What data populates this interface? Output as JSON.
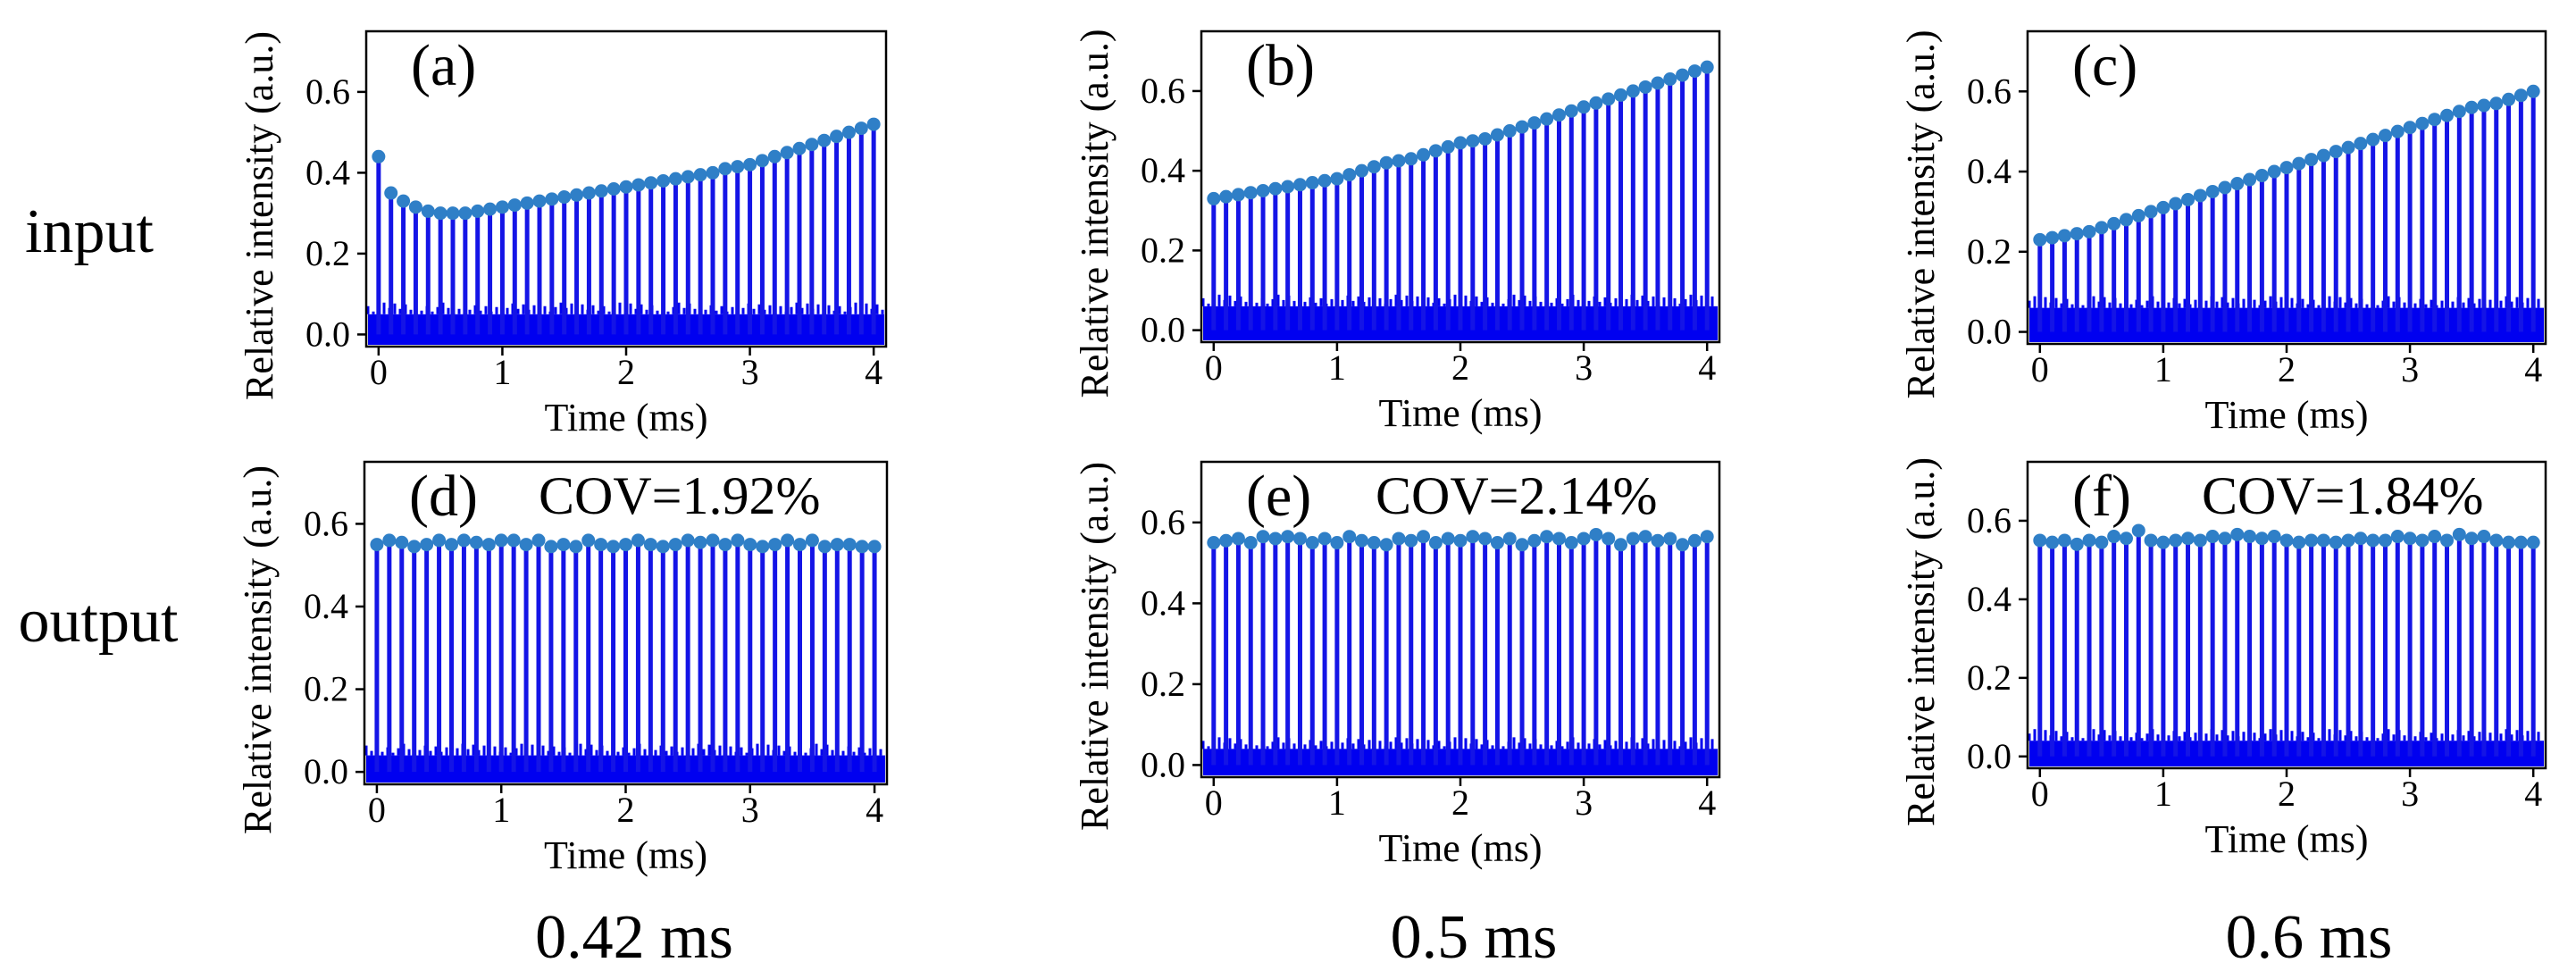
{
  "rows": {
    "input_label": "input",
    "output_label": "output"
  },
  "columns": [
    {
      "label": "0.42 ms"
    },
    {
      "label": "0.5 ms"
    },
    {
      "label": "0.6 ms"
    }
  ],
  "colors": {
    "stem": "#1414e6",
    "marker": "#2f7fc7",
    "baseline_noise": "#0000f0",
    "axis": "#000000"
  },
  "chart_data": [
    {
      "type": "stem",
      "panel": "(a)",
      "annotation": "",
      "xlabel": "Time (ms)",
      "ylabel": "Relative intensity (a.u.)",
      "xlim": [
        -0.1,
        4.1
      ],
      "ylim": [
        -0.03,
        0.75
      ],
      "xticks": [
        0,
        1,
        2,
        3,
        4
      ],
      "yticks": [
        0.0,
        0.2,
        0.4,
        0.6
      ],
      "ytick_labels": [
        "0.0",
        "0.2",
        "0.4",
        "0.6"
      ],
      "noise_level": 0.05,
      "x": [
        0,
        0.1,
        0.2,
        0.3,
        0.4,
        0.5,
        0.6,
        0.7,
        0.8,
        0.9,
        1.0,
        1.1,
        1.2,
        1.3,
        1.4,
        1.5,
        1.6,
        1.7,
        1.8,
        1.9,
        2.0,
        2.1,
        2.2,
        2.3,
        2.4,
        2.5,
        2.6,
        2.7,
        2.8,
        2.9,
        3.0,
        3.1,
        3.2,
        3.3,
        3.4,
        3.5,
        3.6,
        3.7,
        3.8,
        3.9,
        4.0
      ],
      "values": [
        0.44,
        0.35,
        0.33,
        0.315,
        0.305,
        0.3,
        0.3,
        0.3,
        0.305,
        0.31,
        0.315,
        0.32,
        0.325,
        0.33,
        0.335,
        0.34,
        0.345,
        0.35,
        0.355,
        0.36,
        0.365,
        0.37,
        0.375,
        0.38,
        0.385,
        0.39,
        0.395,
        0.4,
        0.41,
        0.415,
        0.42,
        0.43,
        0.44,
        0.45,
        0.46,
        0.47,
        0.48,
        0.49,
        0.5,
        0.51,
        0.52
      ]
    },
    {
      "type": "stem",
      "panel": "(b)",
      "annotation": "",
      "xlabel": "Time (ms)",
      "ylabel": "Relative intensity (a.u.)",
      "xlim": [
        -0.1,
        4.1
      ],
      "ylim": [
        -0.03,
        0.75
      ],
      "xticks": [
        0,
        1,
        2,
        3,
        4
      ],
      "yticks": [
        0.0,
        0.2,
        0.4,
        0.6
      ],
      "ytick_labels": [
        "0.0",
        "0.2",
        "0.4",
        "0.6"
      ],
      "noise_level": 0.06,
      "x": [
        0,
        0.1,
        0.2,
        0.3,
        0.4,
        0.5,
        0.6,
        0.7,
        0.8,
        0.9,
        1.0,
        1.1,
        1.2,
        1.3,
        1.4,
        1.5,
        1.6,
        1.7,
        1.8,
        1.9,
        2.0,
        2.1,
        2.2,
        2.3,
        2.4,
        2.5,
        2.6,
        2.7,
        2.8,
        2.9,
        3.0,
        3.1,
        3.2,
        3.3,
        3.4,
        3.5,
        3.6,
        3.7,
        3.8,
        3.9,
        4.0
      ],
      "values": [
        0.33,
        0.335,
        0.34,
        0.345,
        0.35,
        0.355,
        0.36,
        0.365,
        0.37,
        0.375,
        0.38,
        0.39,
        0.4,
        0.41,
        0.42,
        0.425,
        0.43,
        0.44,
        0.45,
        0.46,
        0.47,
        0.475,
        0.48,
        0.49,
        0.5,
        0.51,
        0.52,
        0.53,
        0.54,
        0.55,
        0.56,
        0.57,
        0.58,
        0.59,
        0.6,
        0.61,
        0.62,
        0.63,
        0.64,
        0.65,
        0.66
      ]
    },
    {
      "type": "stem",
      "panel": "(c)",
      "annotation": "",
      "xlabel": "Time (ms)",
      "ylabel": "Relative intensity (a.u.)",
      "xlim": [
        -0.1,
        4.1
      ],
      "ylim": [
        -0.03,
        0.75
      ],
      "xticks": [
        0,
        1,
        2,
        3,
        4
      ],
      "yticks": [
        0.0,
        0.2,
        0.4,
        0.6
      ],
      "ytick_labels": [
        "0.0",
        "0.2",
        "0.4",
        "0.6"
      ],
      "noise_level": 0.06,
      "x": [
        0,
        0.1,
        0.2,
        0.3,
        0.4,
        0.5,
        0.6,
        0.7,
        0.8,
        0.9,
        1.0,
        1.1,
        1.2,
        1.3,
        1.4,
        1.5,
        1.6,
        1.7,
        1.8,
        1.9,
        2.0,
        2.1,
        2.2,
        2.3,
        2.4,
        2.5,
        2.6,
        2.7,
        2.8,
        2.9,
        3.0,
        3.1,
        3.2,
        3.3,
        3.4,
        3.5,
        3.6,
        3.7,
        3.8,
        3.9,
        4.0
      ],
      "values": [
        0.23,
        0.235,
        0.24,
        0.245,
        0.25,
        0.26,
        0.27,
        0.28,
        0.29,
        0.3,
        0.31,
        0.32,
        0.33,
        0.34,
        0.35,
        0.36,
        0.37,
        0.38,
        0.39,
        0.4,
        0.41,
        0.42,
        0.43,
        0.44,
        0.45,
        0.46,
        0.47,
        0.48,
        0.49,
        0.5,
        0.51,
        0.52,
        0.53,
        0.54,
        0.55,
        0.56,
        0.565,
        0.57,
        0.58,
        0.59,
        0.6
      ]
    },
    {
      "type": "stem",
      "panel": "(d)",
      "annotation": "COV=1.92%",
      "xlabel": "Time (ms)",
      "ylabel": "Relative intensity (a.u.)",
      "xlim": [
        -0.1,
        4.1
      ],
      "ylim": [
        -0.03,
        0.75
      ],
      "xticks": [
        0,
        1,
        2,
        3,
        4
      ],
      "yticks": [
        0.0,
        0.2,
        0.4,
        0.6
      ],
      "ytick_labels": [
        "0.0",
        "0.2",
        "0.4",
        "0.6"
      ],
      "noise_level": 0.04,
      "x": [
        0,
        0.1,
        0.2,
        0.3,
        0.4,
        0.5,
        0.6,
        0.7,
        0.8,
        0.9,
        1.0,
        1.1,
        1.2,
        1.3,
        1.4,
        1.5,
        1.6,
        1.7,
        1.8,
        1.9,
        2.0,
        2.1,
        2.2,
        2.3,
        2.4,
        2.5,
        2.6,
        2.7,
        2.8,
        2.9,
        3.0,
        3.1,
        3.2,
        3.3,
        3.4,
        3.5,
        3.6,
        3.7,
        3.8,
        3.9,
        4.0
      ],
      "values": [
        0.55,
        0.56,
        0.555,
        0.545,
        0.55,
        0.56,
        0.55,
        0.56,
        0.555,
        0.55,
        0.56,
        0.56,
        0.55,
        0.56,
        0.545,
        0.55,
        0.545,
        0.56,
        0.55,
        0.545,
        0.55,
        0.56,
        0.55,
        0.545,
        0.55,
        0.56,
        0.555,
        0.56,
        0.55,
        0.56,
        0.55,
        0.545,
        0.55,
        0.56,
        0.55,
        0.56,
        0.545,
        0.55,
        0.55,
        0.545,
        0.545
      ]
    },
    {
      "type": "stem",
      "panel": "(e)",
      "annotation": "COV=2.14%",
      "xlabel": "Time (ms)",
      "ylabel": "Relative intensity (a.u.)",
      "xlim": [
        -0.1,
        4.1
      ],
      "ylim": [
        -0.03,
        0.75
      ],
      "xticks": [
        0,
        1,
        2,
        3,
        4
      ],
      "yticks": [
        0.0,
        0.2,
        0.4,
        0.6
      ],
      "ytick_labels": [
        "0.0",
        "0.2",
        "0.4",
        "0.6"
      ],
      "noise_level": 0.04,
      "x": [
        0,
        0.1,
        0.2,
        0.3,
        0.4,
        0.5,
        0.6,
        0.7,
        0.8,
        0.9,
        1.0,
        1.1,
        1.2,
        1.3,
        1.4,
        1.5,
        1.6,
        1.7,
        1.8,
        1.9,
        2.0,
        2.1,
        2.2,
        2.3,
        2.4,
        2.5,
        2.6,
        2.7,
        2.8,
        2.9,
        3.0,
        3.1,
        3.2,
        3.3,
        3.4,
        3.5,
        3.6,
        3.7,
        3.8,
        3.9,
        4.0
      ],
      "values": [
        0.55,
        0.555,
        0.56,
        0.55,
        0.565,
        0.56,
        0.565,
        0.56,
        0.55,
        0.56,
        0.55,
        0.565,
        0.555,
        0.55,
        0.545,
        0.56,
        0.555,
        0.565,
        0.55,
        0.56,
        0.555,
        0.565,
        0.56,
        0.55,
        0.56,
        0.545,
        0.555,
        0.565,
        0.56,
        0.55,
        0.56,
        0.57,
        0.56,
        0.545,
        0.56,
        0.565,
        0.555,
        0.56,
        0.545,
        0.555,
        0.565
      ]
    },
    {
      "type": "stem",
      "panel": "(f)",
      "annotation": "COV=1.84%",
      "xlabel": "Time (ms)",
      "ylabel": "Relative intensity (a.u.)",
      "xlim": [
        -0.1,
        4.1
      ],
      "ylim": [
        -0.03,
        0.75
      ],
      "xticks": [
        0,
        1,
        2,
        3,
        4
      ],
      "yticks": [
        0.0,
        0.2,
        0.4,
        0.6
      ],
      "ytick_labels": [
        "0.0",
        "0.2",
        "0.4",
        "0.6"
      ],
      "noise_level": 0.04,
      "x": [
        0,
        0.1,
        0.2,
        0.3,
        0.4,
        0.5,
        0.6,
        0.7,
        0.8,
        0.9,
        1.0,
        1.1,
        1.2,
        1.3,
        1.4,
        1.5,
        1.6,
        1.7,
        1.8,
        1.9,
        2.0,
        2.1,
        2.2,
        2.3,
        2.4,
        2.5,
        2.6,
        2.7,
        2.8,
        2.9,
        3.0,
        3.1,
        3.2,
        3.3,
        3.4,
        3.5,
        3.6,
        3.7,
        3.8,
        3.9,
        4.0
      ],
      "values": [
        0.55,
        0.545,
        0.55,
        0.54,
        0.55,
        0.545,
        0.56,
        0.555,
        0.575,
        0.55,
        0.545,
        0.55,
        0.555,
        0.55,
        0.56,
        0.555,
        0.565,
        0.56,
        0.555,
        0.56,
        0.55,
        0.545,
        0.55,
        0.55,
        0.545,
        0.55,
        0.555,
        0.55,
        0.55,
        0.56,
        0.555,
        0.55,
        0.56,
        0.55,
        0.565,
        0.555,
        0.56,
        0.55,
        0.545,
        0.545,
        0.545
      ]
    }
  ]
}
